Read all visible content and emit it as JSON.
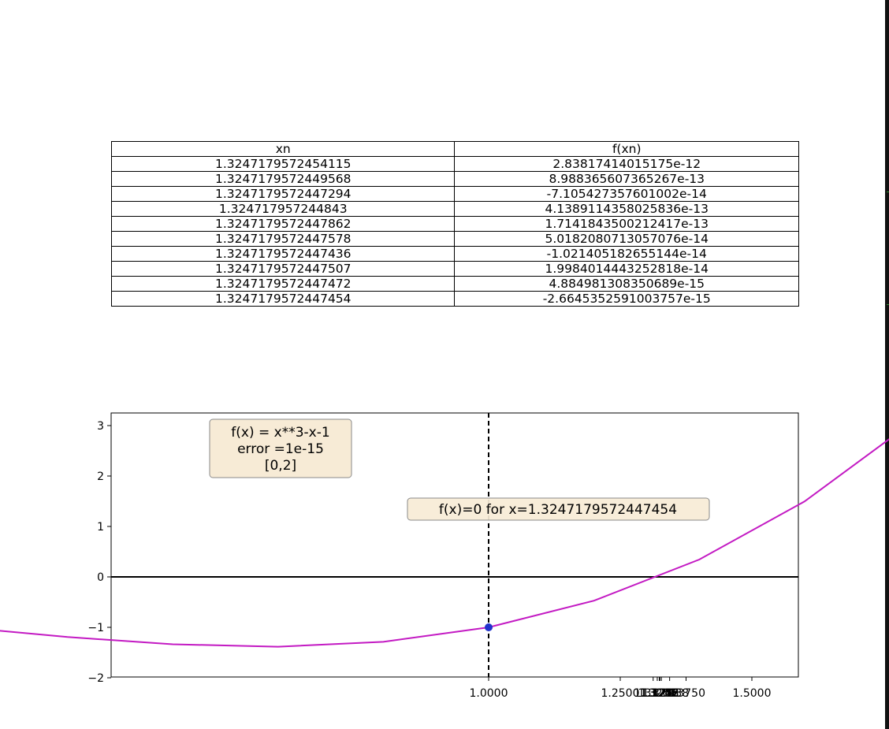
{
  "table": {
    "columns": [
      "xn",
      "f(xn)"
    ],
    "rows": [
      [
        "1.3247179572454115",
        "2.83817414015175e-12"
      ],
      [
        "1.3247179572449568",
        "8.988365607365267e-13"
      ],
      [
        "1.3247179572447294",
        "-7.105427357601002e-14"
      ],
      [
        "1.324717957244843",
        "4.1389114358025836e-13"
      ],
      [
        "1.3247179572447862",
        "1.7141843500212417e-13"
      ],
      [
        "1.3247179572447578",
        "5.0182080713057076e-14"
      ],
      [
        "1.3247179572447436",
        "-1.021405182655144e-14"
      ],
      [
        "1.3247179572447507",
        "1.9984014443252818e-14"
      ],
      [
        "1.3247179572447472",
        "4.884981308350689e-15"
      ],
      [
        "1.3247179572447454",
        "-2.6645352591003757e-15"
      ]
    ]
  },
  "chart_data": {
    "type": "line",
    "title": "",
    "xlabel": "",
    "ylabel": "",
    "xlim": [
      -0.1,
      1.9
    ],
    "ylim": [
      -2,
      3.22
    ],
    "grid": false,
    "curve": {
      "color": "#c31ac3",
      "x": [
        -0.013,
        0.2,
        0.4,
        0.6,
        0.8,
        1.0,
        1.2,
        1.4,
        1.6,
        1.8
      ],
      "y": [
        -0.987,
        -1.192,
        -1.336,
        -1.384,
        -1.288,
        -1.0,
        -0.472,
        0.344,
        1.496,
        3.032
      ]
    },
    "marker_point": {
      "x": 1.0,
      "y": -1.0,
      "color": "#2233cc"
    },
    "hline_y": 0,
    "vline_x": 1.0,
    "y_ticks": [
      -2,
      -1,
      0,
      1,
      2,
      3
    ],
    "y_tick_labels": [
      "−2",
      "−1",
      "0",
      "1",
      "2",
      "3"
    ],
    "x_ticks": [
      1.0,
      1.25,
      1.5
    ],
    "x_tick_labels": [
      "1.0000",
      "1.2500",
      "1.5000"
    ],
    "x_cluster_ticks": [
      1.3125,
      1.3203,
      1.3242,
      1.3246,
      1.3247,
      1.3248,
      1.3252,
      1.3281,
      1.3438,
      1.375
    ],
    "x_cluster_tick_labels": [
      "1.3125",
      "1.3203",
      "1.3242",
      "1.3246",
      "1.3247",
      "1.3248",
      "1.3252",
      "1.3281",
      "1.3438",
      "1.3750"
    ],
    "info_box": {
      "lines": [
        "f(x) = x**3-x-1",
        "error =1e-15",
        "[0,2]"
      ]
    },
    "result_box": {
      "text": "f(x)=0 for x=1.3247179572447454"
    },
    "colors": {
      "box_fill": "#f7ebd6",
      "box_border": "#8a8a8a"
    }
  }
}
